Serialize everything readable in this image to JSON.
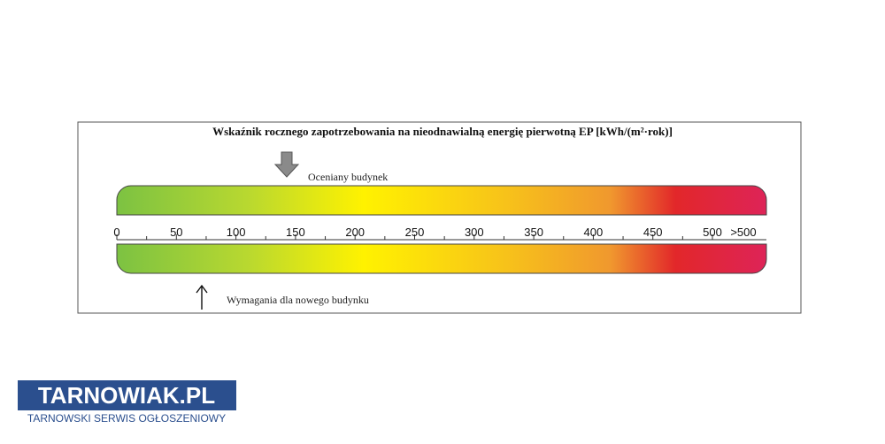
{
  "certificate": {
    "title": "Wskaźnik rocznego zapotrzebowania na nieodnawialną energię pierwotną EP [kWh/(m²·rok)]",
    "evaluated_label": "Oceniany budynek",
    "requirement_label": "Wymagania dla nowego budynku",
    "scale_labels": [
      "0",
      "50",
      "100",
      "150",
      "200",
      "250",
      "300",
      "350",
      "400",
      "450",
      "500",
      ">500"
    ]
  },
  "logo": {
    "name": "TARNOWIAK.PL",
    "tagline": "TARNOWSKI SERWIS OGŁOSZENIOWY"
  }
}
